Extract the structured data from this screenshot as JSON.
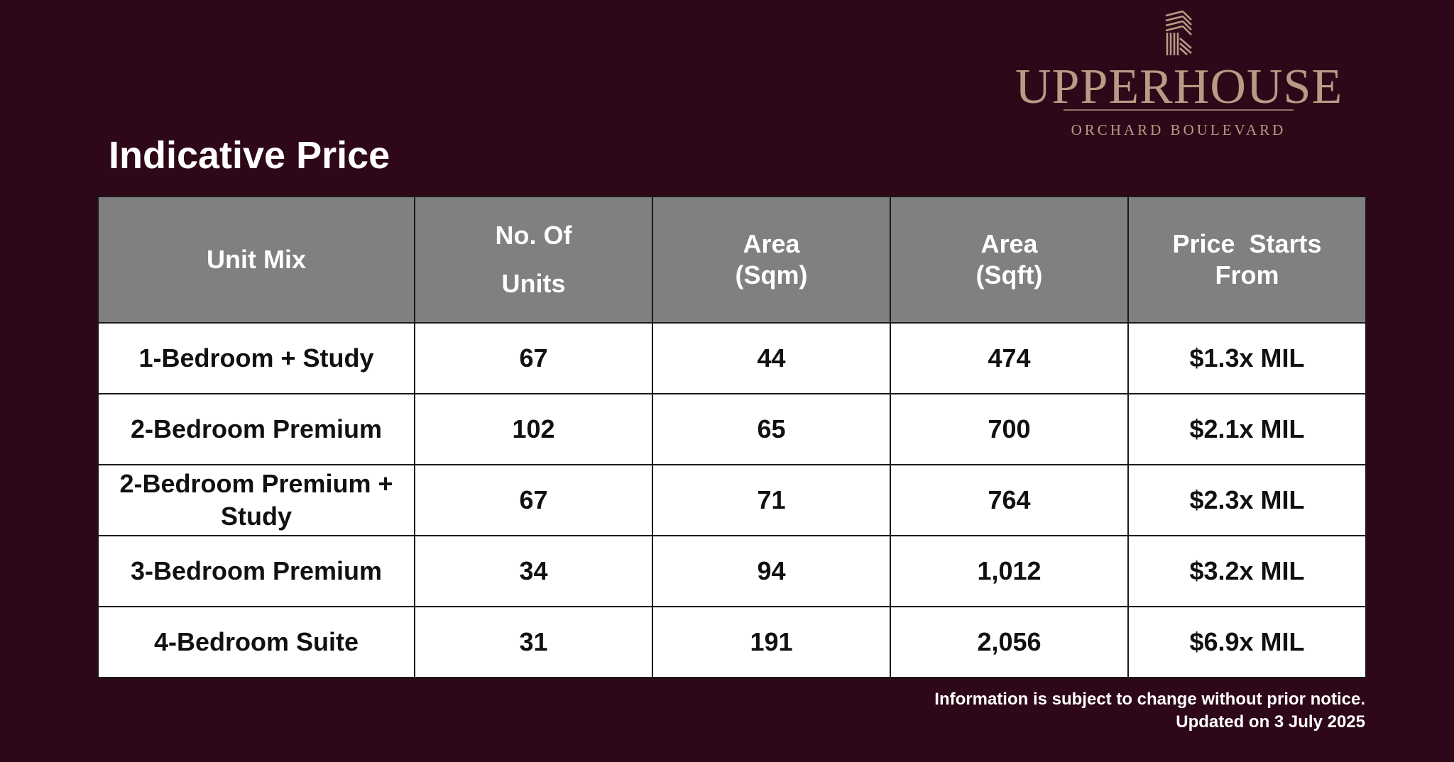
{
  "logo": {
    "name": "UPPERHOUSE",
    "subtitle": "ORCHARD BOULEVARD"
  },
  "title": "Indicative Price",
  "table": {
    "headers": {
      "unit_mix": "Unit Mix",
      "units_line1": "No. Of",
      "units_line2": "Units",
      "area_sqm_line1": "Area",
      "area_sqm_line2": "(Sqm)",
      "area_sqft_line1": "Area",
      "area_sqft_line2": "(Sqft)",
      "price_line1": "Price  Starts",
      "price_line2": "From"
    },
    "rows": [
      {
        "unit_mix": "1-Bedroom + Study",
        "units": "67",
        "area_sqm": "44",
        "area_sqft": "474",
        "price": "$1.3x MIL"
      },
      {
        "unit_mix": "2-Bedroom Premium",
        "units": "102",
        "area_sqm": "65",
        "area_sqft": "700",
        "price": "$2.1x MIL"
      },
      {
        "unit_mix": "2-Bedroom Premium + Study",
        "units": "67",
        "area_sqm": "71",
        "area_sqft": "764",
        "price": "$2.3x MIL"
      },
      {
        "unit_mix": "3-Bedroom Premium",
        "units": "34",
        "area_sqm": "94",
        "area_sqft": "1,012",
        "price": "$3.2x MIL"
      },
      {
        "unit_mix": "4-Bedroom Suite",
        "units": "31",
        "area_sqm": "191",
        "area_sqft": "2,056",
        "price": "$6.9x MIL"
      }
    ]
  },
  "notes": {
    "disclaimer": "Information is subject to change without prior notice.",
    "updated": "Updated on 3 July 2025"
  },
  "colors": {
    "background": "#2e0718",
    "header_fill": "#808080",
    "logo": "#b79b86"
  },
  "icons": [
    "building-logo-icon"
  ]
}
